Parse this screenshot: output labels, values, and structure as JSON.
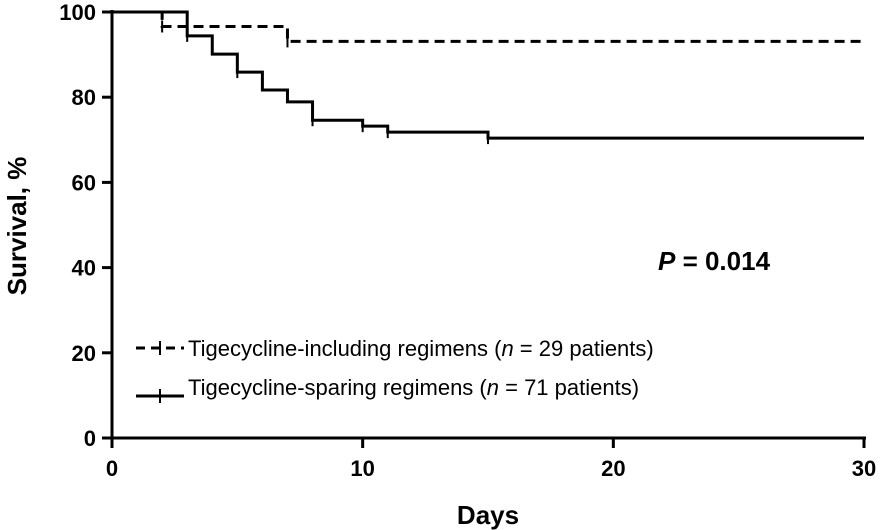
{
  "chart_data": {
    "type": "line",
    "subtype": "kaplan-meier step",
    "xlabel": "Days",
    "ylabel": "Survival, %",
    "xlim": [
      0,
      30
    ],
    "ylim": [
      0,
      100
    ],
    "x_ticks": [
      "0",
      "10",
      "20",
      "30"
    ],
    "y_ticks": [
      "0",
      "20",
      "40",
      "60",
      "80",
      "100"
    ],
    "grid": false,
    "legend_position": "bottom-left",
    "annotation": {
      "italic": "P",
      "rest": " = 0.014"
    },
    "series": [
      {
        "name": "Tigecycline-including regimens (n = 29 patients)",
        "legend": {
          "prefix": "Tigecycline-including regimens (",
          "n": "n",
          "suffix": " = 29 patients)"
        },
        "line_style": "dashed",
        "steps": [
          [
            0,
            100
          ],
          [
            2,
            96.6
          ],
          [
            7,
            93.1
          ],
          [
            30,
            93.1
          ]
        ],
        "censor_x": [
          2,
          3,
          7
        ]
      },
      {
        "name": "Tigecycline-sparing regimens (n = 71 patients)",
        "legend": {
          "prefix": "Tigecycline-sparing regimens (",
          "n": "n",
          "suffix": " = 71 patients)"
        },
        "line_style": "solid",
        "steps": [
          [
            0,
            100
          ],
          [
            3,
            94.4
          ],
          [
            4,
            90.1
          ],
          [
            5,
            85.9
          ],
          [
            6,
            81.7
          ],
          [
            7,
            78.9
          ],
          [
            8,
            74.6
          ],
          [
            10,
            73.2
          ],
          [
            11,
            71.8
          ],
          [
            15,
            70.4
          ],
          [
            30,
            70.4
          ]
        ],
        "censor_x": [
          3,
          5,
          8,
          10,
          11,
          15
        ]
      }
    ]
  }
}
